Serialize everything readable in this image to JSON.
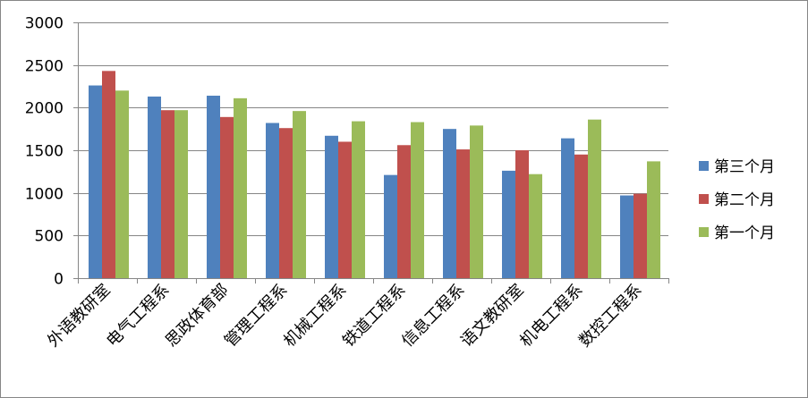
{
  "chart_data": {
    "type": "bar",
    "categories": [
      "外语教研室",
      "电气工程系",
      "思政体育部",
      "管理工程系",
      "机械工程系",
      "铁道工程系",
      "信息工程系",
      "语文教研室",
      "机电工程系",
      "数控工程系"
    ],
    "series": [
      {
        "name": "第三个月",
        "color": "#4F81BD",
        "values": [
          2260,
          2130,
          2140,
          1820,
          1670,
          1210,
          1750,
          1260,
          1640,
          970
        ]
      },
      {
        "name": "第二个月",
        "color": "#C0504D",
        "values": [
          2430,
          1970,
          1890,
          1760,
          1600,
          1560,
          1510,
          1500,
          1450,
          990
        ]
      },
      {
        "name": "第一个月",
        "color": "#9BBB59",
        "values": [
          2200,
          1970,
          2110,
          1960,
          1840,
          1830,
          1790,
          1220,
          1860,
          1370
        ]
      }
    ],
    "ylim": [
      0,
      3000
    ],
    "yticks": [
      "0",
      "500",
      "1000",
      "1500",
      "2000",
      "2500",
      "3000"
    ],
    "grid": true,
    "legend_position": "right"
  }
}
